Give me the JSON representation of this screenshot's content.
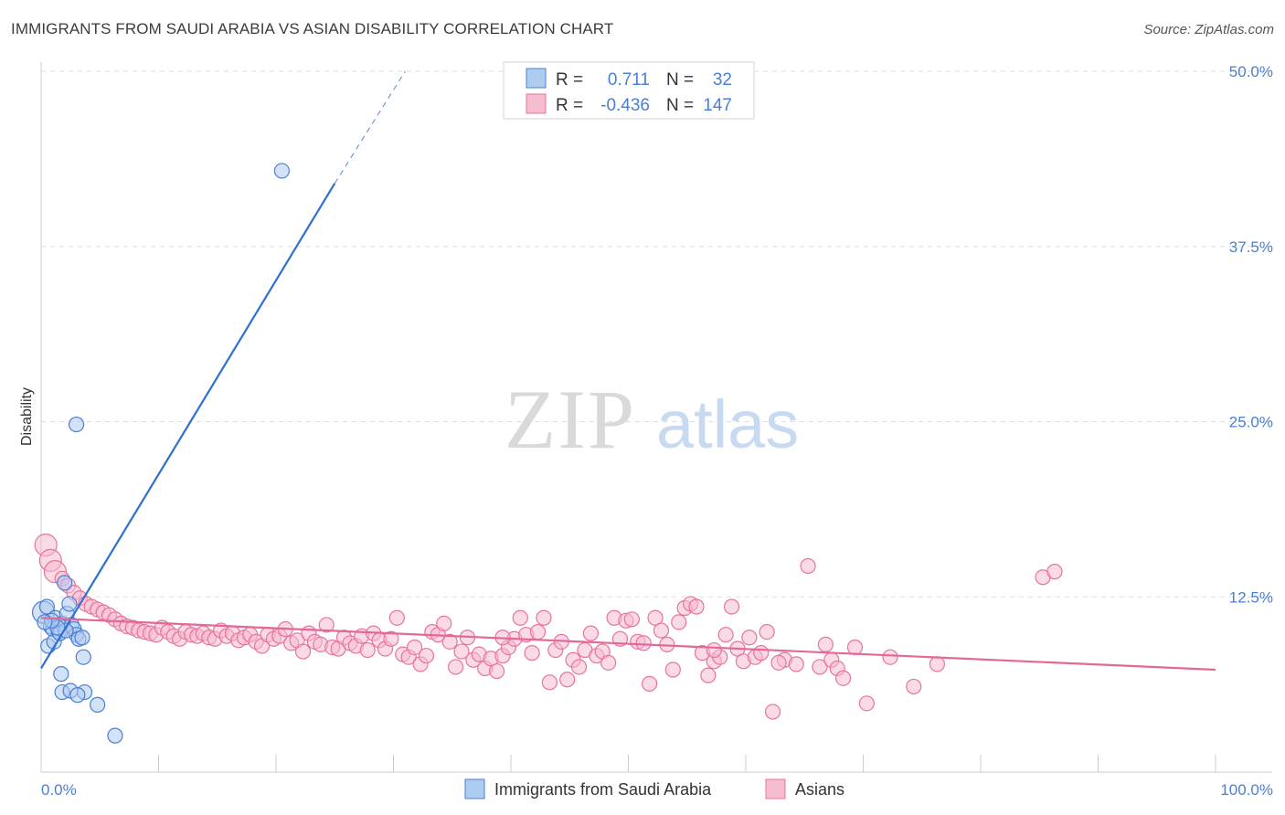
{
  "title": "IMMIGRANTS FROM SAUDI ARABIA VS ASIAN DISABILITY CORRELATION CHART",
  "source": "Source: ZipAtlas.com",
  "watermark": {
    "zip": "ZIP",
    "atlas": "atlas"
  },
  "colors": {
    "blue": "#4a7fd4",
    "blue_fill": "#aecbf0",
    "blue_line": "#2f6fd0",
    "pink": "#e8739d",
    "pink_fill": "#f6bcd0",
    "pink_line": "#e2689a",
    "grid": "#dddddd",
    "text": "#333333"
  },
  "stats_legend": {
    "rows": [
      {
        "r_label": "R =",
        "r_value": "0.711",
        "n_label": "N =",
        "n_value": "32"
      },
      {
        "r_label": "R =",
        "r_value": "-0.436",
        "n_label": "N =",
        "n_value": "147"
      }
    ]
  },
  "chart_data": {
    "type": "scatter",
    "ylabel": "Disability",
    "xlim": [
      0,
      100
    ],
    "ylim": [
      0,
      50
    ],
    "y_ticks": [
      {
        "value": 12.5,
        "label": "12.5%"
      },
      {
        "value": 25.0,
        "label": "25.0%"
      },
      {
        "value": 37.5,
        "label": "37.5%"
      },
      {
        "value": 50.0,
        "label": "50.0%"
      }
    ],
    "x_tick_labels": [
      {
        "value": 0,
        "label": "0.0%"
      },
      {
        "value": 100,
        "label": "100.0%"
      }
    ],
    "x_minor_ticks": [
      10,
      20,
      30,
      40,
      50,
      60,
      70,
      80,
      90,
      100
    ],
    "grid": true,
    "legend_position": "bottom-center",
    "series": [
      {
        "name": "Immigrants from Saudi Arabia",
        "color": "blue",
        "r": 0.711,
        "n": 32,
        "trend": {
          "x0": 0,
          "y0": 7.4,
          "x1": 25,
          "y1": 42,
          "dash_to_x": 31,
          "dash_to_y": 50
        },
        "points": [
          [
            20.5,
            42.9
          ],
          [
            3.0,
            24.8
          ],
          [
            0.2,
            11.4
          ],
          [
            0.5,
            11.8
          ],
          [
            0.8,
            10.4
          ],
          [
            1.0,
            10.2
          ],
          [
            1.2,
            11.0
          ],
          [
            1.5,
            10.0
          ],
          [
            1.8,
            10.6
          ],
          [
            2.0,
            13.5
          ],
          [
            2.2,
            11.3
          ],
          [
            2.4,
            12.0
          ],
          [
            2.6,
            10.5
          ],
          [
            2.8,
            10.2
          ],
          [
            3.0,
            9.8
          ],
          [
            3.2,
            9.5
          ],
          [
            3.5,
            9.6
          ],
          [
            0.6,
            9.0
          ],
          [
            1.1,
            9.3
          ],
          [
            1.6,
            9.9
          ],
          [
            2.1,
            10.1
          ],
          [
            1.4,
            10.3
          ],
          [
            0.9,
            10.8
          ],
          [
            3.6,
            8.2
          ],
          [
            1.7,
            7.0
          ],
          [
            1.8,
            5.7
          ],
          [
            2.5,
            5.8
          ],
          [
            3.7,
            5.7
          ],
          [
            3.1,
            5.5
          ],
          [
            4.8,
            4.8
          ],
          [
            6.3,
            2.6
          ],
          [
            0.3,
            10.7
          ]
        ]
      },
      {
        "name": "Asians",
        "color": "pink",
        "r": -0.436,
        "n": 147,
        "trend": {
          "x0": 0,
          "y0": 11.0,
          "x1": 100,
          "y1": 7.3
        },
        "points": [
          [
            0.4,
            16.2
          ],
          [
            0.8,
            15.1
          ],
          [
            1.2,
            14.3
          ],
          [
            1.8,
            13.8
          ],
          [
            2.3,
            13.3
          ],
          [
            2.8,
            12.8
          ],
          [
            3.3,
            12.4
          ],
          [
            3.8,
            12.0
          ],
          [
            4.3,
            11.8
          ],
          [
            4.8,
            11.6
          ],
          [
            5.3,
            11.4
          ],
          [
            5.8,
            11.2
          ],
          [
            6.3,
            10.9
          ],
          [
            6.8,
            10.6
          ],
          [
            7.3,
            10.4
          ],
          [
            7.8,
            10.3
          ],
          [
            8.3,
            10.1
          ],
          [
            8.8,
            10.0
          ],
          [
            9.3,
            9.9
          ],
          [
            9.8,
            9.8
          ],
          [
            10.3,
            10.3
          ],
          [
            10.8,
            10.0
          ],
          [
            11.3,
            9.7
          ],
          [
            11.8,
            9.5
          ],
          [
            12.3,
            10.0
          ],
          [
            12.8,
            9.8
          ],
          [
            13.3,
            9.7
          ],
          [
            13.8,
            9.9
          ],
          [
            14.3,
            9.6
          ],
          [
            14.8,
            9.5
          ],
          [
            15.3,
            10.1
          ],
          [
            15.8,
            9.7
          ],
          [
            16.3,
            9.9
          ],
          [
            16.8,
            9.4
          ],
          [
            17.3,
            9.6
          ],
          [
            17.8,
            9.8
          ],
          [
            18.3,
            9.3
          ],
          [
            18.8,
            9.0
          ],
          [
            19.3,
            9.8
          ],
          [
            19.8,
            9.5
          ],
          [
            20.3,
            9.7
          ],
          [
            20.8,
            10.2
          ],
          [
            21.3,
            9.2
          ],
          [
            21.8,
            9.4
          ],
          [
            22.3,
            8.6
          ],
          [
            22.8,
            9.9
          ],
          [
            23.3,
            9.3
          ],
          [
            23.8,
            9.1
          ],
          [
            24.3,
            10.5
          ],
          [
            24.8,
            8.9
          ],
          [
            25.3,
            8.8
          ],
          [
            25.8,
            9.6
          ],
          [
            26.3,
            9.2
          ],
          [
            26.8,
            9.0
          ],
          [
            27.3,
            9.7
          ],
          [
            27.8,
            8.7
          ],
          [
            28.3,
            9.9
          ],
          [
            28.8,
            9.4
          ],
          [
            29.3,
            8.8
          ],
          [
            29.8,
            9.5
          ],
          [
            30.3,
            11.0
          ],
          [
            30.8,
            8.4
          ],
          [
            31.3,
            8.2
          ],
          [
            31.8,
            8.9
          ],
          [
            32.3,
            7.7
          ],
          [
            32.8,
            8.3
          ],
          [
            33.3,
            10.0
          ],
          [
            33.8,
            9.8
          ],
          [
            34.3,
            10.6
          ],
          [
            34.8,
            9.3
          ],
          [
            35.3,
            7.5
          ],
          [
            35.8,
            8.6
          ],
          [
            36.3,
            9.6
          ],
          [
            36.8,
            8.0
          ],
          [
            37.3,
            8.4
          ],
          [
            37.8,
            7.4
          ],
          [
            38.3,
            8.1
          ],
          [
            38.8,
            7.2
          ],
          [
            39.3,
            8.3
          ],
          [
            39.8,
            8.9
          ],
          [
            40.3,
            9.5
          ],
          [
            40.8,
            11.0
          ],
          [
            41.3,
            9.8
          ],
          [
            41.8,
            8.5
          ],
          [
            42.3,
            10.0
          ],
          [
            42.8,
            11.0
          ],
          [
            43.3,
            6.4
          ],
          [
            43.8,
            8.7
          ],
          [
            44.3,
            9.3
          ],
          [
            44.8,
            6.6
          ],
          [
            45.3,
            8.0
          ],
          [
            45.8,
            7.5
          ],
          [
            46.3,
            8.7
          ],
          [
            46.8,
            9.9
          ],
          [
            47.3,
            8.3
          ],
          [
            47.8,
            8.6
          ],
          [
            48.3,
            7.8
          ],
          [
            48.8,
            11.0
          ],
          [
            49.3,
            9.5
          ],
          [
            49.8,
            10.8
          ],
          [
            50.3,
            10.9
          ],
          [
            50.8,
            9.3
          ],
          [
            51.3,
            9.2
          ],
          [
            51.8,
            6.3
          ],
          [
            52.3,
            11.0
          ],
          [
            52.8,
            10.1
          ],
          [
            53.3,
            9.1
          ],
          [
            53.8,
            7.3
          ],
          [
            54.3,
            10.7
          ],
          [
            54.8,
            11.7
          ],
          [
            55.3,
            12.0
          ],
          [
            55.8,
            11.8
          ],
          [
            56.3,
            8.5
          ],
          [
            56.8,
            6.9
          ],
          [
            57.3,
            7.9
          ],
          [
            57.8,
            8.2
          ],
          [
            58.3,
            9.8
          ],
          [
            58.8,
            11.8
          ],
          [
            59.3,
            8.8
          ],
          [
            59.8,
            7.9
          ],
          [
            60.3,
            9.6
          ],
          [
            60.8,
            8.2
          ],
          [
            61.3,
            8.5
          ],
          [
            61.8,
            10.0
          ],
          [
            62.3,
            4.3
          ],
          [
            63.3,
            8.0
          ],
          [
            64.3,
            7.7
          ],
          [
            65.3,
            14.7
          ],
          [
            66.3,
            7.5
          ],
          [
            67.3,
            8.0
          ],
          [
            67.8,
            7.4
          ],
          [
            68.3,
            6.7
          ],
          [
            69.3,
            8.9
          ],
          [
            70.3,
            4.9
          ],
          [
            72.3,
            8.2
          ],
          [
            74.3,
            6.1
          ],
          [
            76.3,
            7.7
          ],
          [
            85.3,
            13.9
          ],
          [
            86.3,
            14.3
          ],
          [
            57.3,
            8.7
          ],
          [
            62.8,
            7.8
          ],
          [
            66.8,
            9.1
          ],
          [
            39.3,
            9.6
          ]
        ]
      }
    ]
  },
  "legend_bottom": [
    {
      "label": "Immigrants from Saudi Arabia"
    },
    {
      "label": "Asians"
    }
  ]
}
